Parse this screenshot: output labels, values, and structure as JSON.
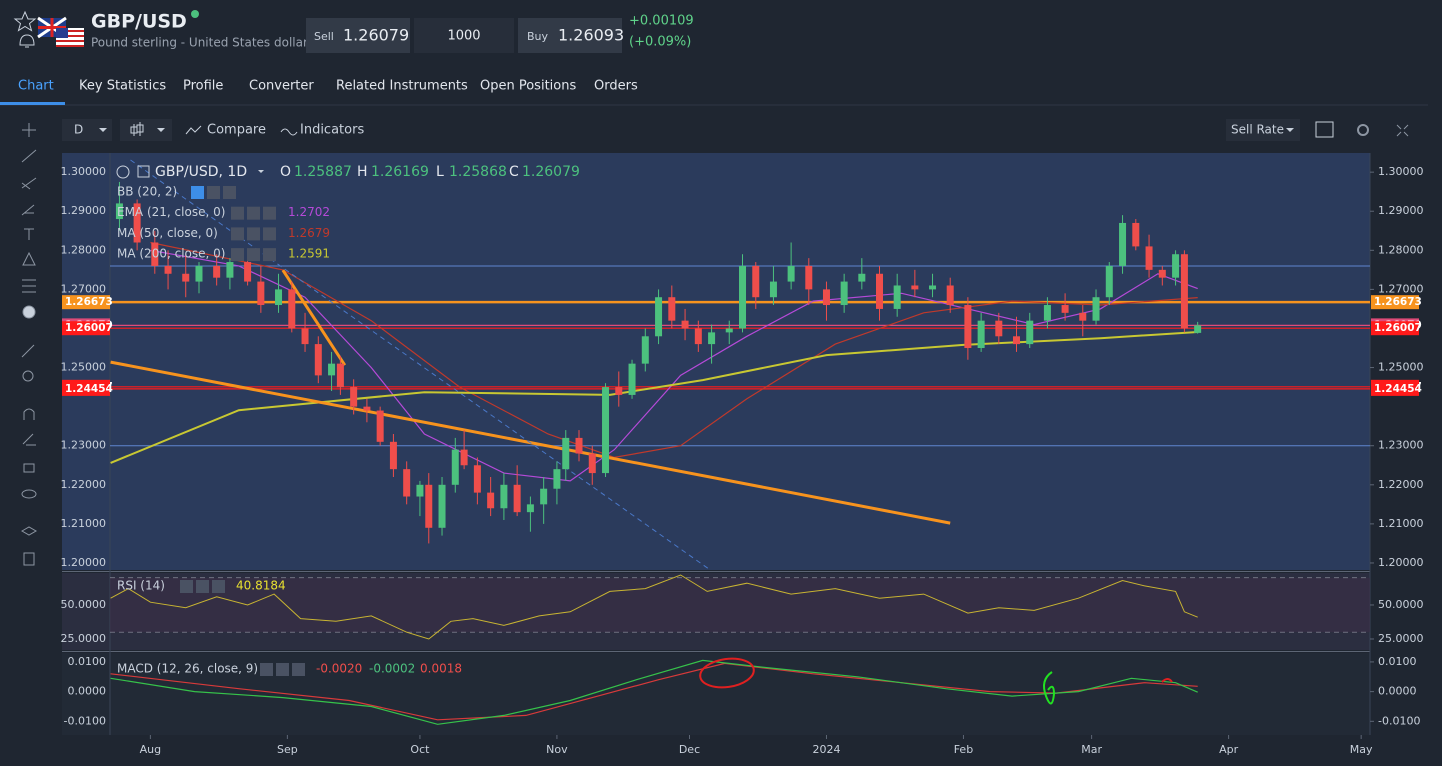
{
  "header": {
    "symbol": "GBP/USD",
    "name": "Pound sterling - United States dollar",
    "sell_label": "Sell",
    "sell": "1.26079",
    "quantity": "1000",
    "buy_label": "Buy",
    "buy": "1.26093",
    "change": "+0.00109",
    "change_pct": "(+0.09%)"
  },
  "tabs": [
    "Chart",
    "Key Statistics",
    "Profile",
    "Converter",
    "Related Instruments",
    "Open Positions",
    "Orders"
  ],
  "toolbar": {
    "interval": "D",
    "compare": "Compare",
    "indicators": "Indicators",
    "rate": "Sell Rate"
  },
  "chart_data": {
    "type": "candlestick",
    "title": "GBP/USD, 1D",
    "legend": {
      "o_label": "O",
      "o": "1.25887",
      "h_label": "H",
      "h": "1.26169",
      "l_label": "L",
      "l": "1.25868",
      "c_label": "C",
      "c": "1.26079"
    },
    "up_color": "#4cc17e",
    "down_color": "#ef4e4b",
    "xlim": [
      -20,
      276
    ],
    "xticks": [
      {
        "value": 0,
        "label": "Aug"
      },
      {
        "value": 31,
        "label": "Sep"
      },
      {
        "value": 61,
        "label": "Oct"
      },
      {
        "value": 92,
        "label": "Nov"
      },
      {
        "value": 122,
        "label": "Dec"
      },
      {
        "value": 153,
        "label": "2024"
      },
      {
        "value": 184,
        "label": "Feb"
      },
      {
        "value": 213,
        "label": "Mar"
      },
      {
        "value": 244,
        "label": "Apr"
      },
      {
        "value": 274,
        "label": "May"
      }
    ],
    "ylim": [
      1.1982,
      1.3049
    ],
    "yticks": [
      {
        "value": 1.3,
        "label": "1.30000"
      },
      {
        "value": 1.29,
        "label": "1.29000"
      },
      {
        "value": 1.28,
        "label": "1.28000"
      },
      {
        "value": 1.27,
        "label": "1.27000"
      },
      {
        "value": 1.25,
        "label": "1.25000"
      },
      {
        "value": 1.23,
        "label": "1.23000"
      },
      {
        "value": 1.22,
        "label": "1.22000"
      },
      {
        "value": 1.21,
        "label": "1.21000"
      },
      {
        "value": 1.2,
        "label": "1.20000"
      }
    ],
    "candles": [
      {
        "x": -7,
        "o": 1.288,
        "h": 1.2975,
        "l": 1.285,
        "c": 1.292
      },
      {
        "x": -3,
        "o": 1.292,
        "h": 1.293,
        "l": 1.28,
        "c": 1.282
      },
      {
        "x": 1,
        "o": 1.282,
        "h": 1.285,
        "l": 1.274,
        "c": 1.276
      },
      {
        "x": 4,
        "o": 1.276,
        "h": 1.28,
        "l": 1.27,
        "c": 1.274
      },
      {
        "x": 8,
        "o": 1.274,
        "h": 1.279,
        "l": 1.268,
        "c": 1.272
      },
      {
        "x": 11,
        "o": 1.272,
        "h": 1.277,
        "l": 1.269,
        "c": 1.276
      },
      {
        "x": 15,
        "o": 1.276,
        "h": 1.279,
        "l": 1.271,
        "c": 1.273
      },
      {
        "x": 18,
        "o": 1.273,
        "h": 1.278,
        "l": 1.27,
        "c": 1.277
      },
      {
        "x": 22,
        "o": 1.277,
        "h": 1.279,
        "l": 1.271,
        "c": 1.272
      },
      {
        "x": 25,
        "o": 1.272,
        "h": 1.276,
        "l": 1.264,
        "c": 1.266
      },
      {
        "x": 29,
        "o": 1.266,
        "h": 1.274,
        "l": 1.264,
        "c": 1.27
      },
      {
        "x": 32,
        "o": 1.27,
        "h": 1.272,
        "l": 1.259,
        "c": 1.26
      },
      {
        "x": 35,
        "o": 1.26,
        "h": 1.264,
        "l": 1.254,
        "c": 1.256
      },
      {
        "x": 38,
        "o": 1.256,
        "h": 1.258,
        "l": 1.246,
        "c": 1.248
      },
      {
        "x": 41,
        "o": 1.248,
        "h": 1.254,
        "l": 1.244,
        "c": 1.251
      },
      {
        "x": 43,
        "o": 1.251,
        "h": 1.253,
        "l": 1.243,
        "c": 1.245
      },
      {
        "x": 46,
        "o": 1.245,
        "h": 1.247,
        "l": 1.238,
        "c": 1.24
      },
      {
        "x": 49,
        "o": 1.24,
        "h": 1.242,
        "l": 1.236,
        "c": 1.239
      },
      {
        "x": 52,
        "o": 1.239,
        "h": 1.24,
        "l": 1.23,
        "c": 1.231
      },
      {
        "x": 55,
        "o": 1.231,
        "h": 1.233,
        "l": 1.222,
        "c": 1.224
      },
      {
        "x": 58,
        "o": 1.224,
        "h": 1.226,
        "l": 1.215,
        "c": 1.217
      },
      {
        "x": 61,
        "o": 1.217,
        "h": 1.221,
        "l": 1.212,
        "c": 1.22
      },
      {
        "x": 63,
        "o": 1.22,
        "h": 1.223,
        "l": 1.205,
        "c": 1.209
      },
      {
        "x": 66,
        "o": 1.209,
        "h": 1.222,
        "l": 1.207,
        "c": 1.22
      },
      {
        "x": 69,
        "o": 1.22,
        "h": 1.232,
        "l": 1.218,
        "c": 1.229
      },
      {
        "x": 71,
        "o": 1.229,
        "h": 1.234,
        "l": 1.224,
        "c": 1.225
      },
      {
        "x": 74,
        "o": 1.225,
        "h": 1.227,
        "l": 1.215,
        "c": 1.218
      },
      {
        "x": 77,
        "o": 1.218,
        "h": 1.222,
        "l": 1.212,
        "c": 1.214
      },
      {
        "x": 80,
        "o": 1.214,
        "h": 1.223,
        "l": 1.211,
        "c": 1.22
      },
      {
        "x": 83,
        "o": 1.22,
        "h": 1.225,
        "l": 1.212,
        "c": 1.213
      },
      {
        "x": 86,
        "o": 1.213,
        "h": 1.217,
        "l": 1.208,
        "c": 1.215
      },
      {
        "x": 89,
        "o": 1.215,
        "h": 1.222,
        "l": 1.21,
        "c": 1.219
      },
      {
        "x": 92,
        "o": 1.219,
        "h": 1.226,
        "l": 1.215,
        "c": 1.224
      },
      {
        "x": 94,
        "o": 1.224,
        "h": 1.234,
        "l": 1.221,
        "c": 1.232
      },
      {
        "x": 97,
        "o": 1.232,
        "h": 1.234,
        "l": 1.226,
        "c": 1.228
      },
      {
        "x": 100,
        "o": 1.228,
        "h": 1.23,
        "l": 1.22,
        "c": 1.223
      },
      {
        "x": 103,
        "o": 1.223,
        "h": 1.246,
        "l": 1.222,
        "c": 1.245
      },
      {
        "x": 106,
        "o": 1.245,
        "h": 1.249,
        "l": 1.24,
        "c": 1.243
      },
      {
        "x": 109,
        "o": 1.243,
        "h": 1.252,
        "l": 1.242,
        "c": 1.251
      },
      {
        "x": 112,
        "o": 1.251,
        "h": 1.26,
        "l": 1.249,
        "c": 1.258
      },
      {
        "x": 115,
        "o": 1.258,
        "h": 1.27,
        "l": 1.256,
        "c": 1.268
      },
      {
        "x": 118,
        "o": 1.268,
        "h": 1.271,
        "l": 1.26,
        "c": 1.262
      },
      {
        "x": 121,
        "o": 1.262,
        "h": 1.265,
        "l": 1.257,
        "c": 1.26
      },
      {
        "x": 124,
        "o": 1.26,
        "h": 1.262,
        "l": 1.254,
        "c": 1.256
      },
      {
        "x": 127,
        "o": 1.256,
        "h": 1.261,
        "l": 1.251,
        "c": 1.259
      },
      {
        "x": 131,
        "o": 1.259,
        "h": 1.262,
        "l": 1.256,
        "c": 1.26
      },
      {
        "x": 134,
        "o": 1.26,
        "h": 1.279,
        "l": 1.259,
        "c": 1.276
      },
      {
        "x": 137,
        "o": 1.276,
        "h": 1.277,
        "l": 1.265,
        "c": 1.268
      },
      {
        "x": 141,
        "o": 1.268,
        "h": 1.276,
        "l": 1.266,
        "c": 1.272
      },
      {
        "x": 145,
        "o": 1.272,
        "h": 1.282,
        "l": 1.27,
        "c": 1.276
      },
      {
        "x": 149,
        "o": 1.276,
        "h": 1.278,
        "l": 1.266,
        "c": 1.27
      },
      {
        "x": 153,
        "o": 1.27,
        "h": 1.272,
        "l": 1.262,
        "c": 1.266
      },
      {
        "x": 157,
        "o": 1.266,
        "h": 1.274,
        "l": 1.264,
        "c": 1.272
      },
      {
        "x": 161,
        "o": 1.272,
        "h": 1.278,
        "l": 1.27,
        "c": 1.274
      },
      {
        "x": 165,
        "o": 1.274,
        "h": 1.276,
        "l": 1.262,
        "c": 1.265
      },
      {
        "x": 169,
        "o": 1.265,
        "h": 1.274,
        "l": 1.263,
        "c": 1.271
      },
      {
        "x": 173,
        "o": 1.271,
        "h": 1.275,
        "l": 1.268,
        "c": 1.27
      },
      {
        "x": 177,
        "o": 1.27,
        "h": 1.274,
        "l": 1.268,
        "c": 1.271
      },
      {
        "x": 181,
        "o": 1.271,
        "h": 1.273,
        "l": 1.264,
        "c": 1.266
      },
      {
        "x": 185,
        "o": 1.266,
        "h": 1.268,
        "l": 1.252,
        "c": 1.255
      },
      {
        "x": 188,
        "o": 1.255,
        "h": 1.264,
        "l": 1.254,
        "c": 1.262
      },
      {
        "x": 192,
        "o": 1.262,
        "h": 1.264,
        "l": 1.256,
        "c": 1.258
      },
      {
        "x": 196,
        "o": 1.258,
        "h": 1.263,
        "l": 1.254,
        "c": 1.256
      },
      {
        "x": 199,
        "o": 1.256,
        "h": 1.264,
        "l": 1.255,
        "c": 1.262
      },
      {
        "x": 203,
        "o": 1.262,
        "h": 1.268,
        "l": 1.26,
        "c": 1.266
      },
      {
        "x": 207,
        "o": 1.266,
        "h": 1.269,
        "l": 1.262,
        "c": 1.264
      },
      {
        "x": 211,
        "o": 1.264,
        "h": 1.266,
        "l": 1.258,
        "c": 1.262
      },
      {
        "x": 214,
        "o": 1.262,
        "h": 1.27,
        "l": 1.261,
        "c": 1.268
      },
      {
        "x": 217,
        "o": 1.268,
        "h": 1.277,
        "l": 1.266,
        "c": 1.276
      },
      {
        "x": 220,
        "o": 1.276,
        "h": 1.289,
        "l": 1.274,
        "c": 1.287
      },
      {
        "x": 223,
        "o": 1.287,
        "h": 1.288,
        "l": 1.28,
        "c": 1.281
      },
      {
        "x": 226,
        "o": 1.281,
        "h": 1.284,
        "l": 1.273,
        "c": 1.275
      },
      {
        "x": 229,
        "o": 1.275,
        "h": 1.276,
        "l": 1.271,
        "c": 1.273
      },
      {
        "x": 232,
        "o": 1.273,
        "h": 1.28,
        "l": 1.271,
        "c": 1.279
      },
      {
        "x": 234,
        "o": 1.279,
        "h": 1.28,
        "l": 1.259,
        "c": 1.26
      },
      {
        "x": 237,
        "o": 1.25887,
        "h": 1.26169,
        "l": 1.25868,
        "c": 1.26079
      }
    ],
    "indicators": [
      {
        "name": "BB (20, 2)"
      },
      {
        "name": "EMA (21, close, 0)",
        "value": "1.2702",
        "color": "#b54ad8",
        "points": [
          [
            0,
            1.28
          ],
          [
            20,
            1.276
          ],
          [
            35,
            1.268
          ],
          [
            50,
            1.25
          ],
          [
            62,
            1.233
          ],
          [
            80,
            1.223
          ],
          [
            95,
            1.221
          ],
          [
            105,
            1.229
          ],
          [
            120,
            1.248
          ],
          [
            135,
            1.258
          ],
          [
            150,
            1.267
          ],
          [
            170,
            1.269
          ],
          [
            185,
            1.265
          ],
          [
            200,
            1.261
          ],
          [
            215,
            1.265
          ],
          [
            228,
            1.274
          ],
          [
            237,
            1.2702
          ]
        ]
      },
      {
        "name": "MA (50, close, 0)",
        "value": "1.2679",
        "color": "#c0392b",
        "points": [
          [
            0,
            1.282
          ],
          [
            30,
            1.275
          ],
          [
            50,
            1.262
          ],
          [
            70,
            1.245
          ],
          [
            90,
            1.233
          ],
          [
            105,
            1.227
          ],
          [
            120,
            1.23
          ],
          [
            135,
            1.242
          ],
          [
            155,
            1.256
          ],
          [
            175,
            1.264
          ],
          [
            195,
            1.267
          ],
          [
            215,
            1.266
          ],
          [
            237,
            1.2679
          ]
        ]
      },
      {
        "name": "MA (200, close, 0)",
        "value": "1.2591",
        "color": "#c8c832",
        "points": [
          [
            -9,
            1.2256
          ],
          [
            20,
            1.2391
          ],
          [
            62,
            1.2437
          ],
          [
            104,
            1.243
          ],
          [
            125,
            1.2468
          ],
          [
            153,
            1.2532
          ],
          [
            184,
            1.2558
          ],
          [
            215,
            1.2575
          ],
          [
            237,
            1.2591
          ]
        ]
      }
    ],
    "trendlines": [
      {
        "color": "#f7931e",
        "points": [
          [
            -9,
            1.2514
          ],
          [
            181,
            1.2102
          ]
        ]
      },
      {
        "color": "#f7931e",
        "points": [
          [
            30,
            1.2749
          ],
          [
            44,
            1.2506
          ]
        ]
      },
      {
        "color": "#4a78c8",
        "dashed": true,
        "points": [
          [
            -4.5,
            1.3031
          ],
          [
            126.7,
            1.1982
          ]
        ]
      }
    ],
    "hlines": [
      1.276,
      1.23
    ],
    "levels": [
      {
        "value": 1.26673,
        "color": "#f7931e"
      },
      {
        "value": 1.26079,
        "color": "#e04b78"
      },
      {
        "value": 1.26007,
        "color": "#ff1a1a"
      },
      {
        "value": 1.24507,
        "color": "#ff1a1a"
      },
      {
        "value": 1.24454,
        "color": "#ff1a1a"
      }
    ],
    "rsi": {
      "name": "RSI (14)",
      "value": "40.8184",
      "color": "#c8b432",
      "ylim": [
        16.9,
        73.5
      ],
      "yticks": [
        {
          "value": 50,
          "label": "50.0000"
        },
        {
          "value": 25,
          "label": "25.0000"
        }
      ],
      "bands": [
        70,
        30
      ],
      "points": [
        [
          -9,
          55
        ],
        [
          -5,
          62
        ],
        [
          0,
          52
        ],
        [
          8,
          48
        ],
        [
          15,
          56
        ],
        [
          22,
          50
        ],
        [
          28,
          58
        ],
        [
          34,
          40
        ],
        [
          42,
          38
        ],
        [
          50,
          42
        ],
        [
          58,
          30
        ],
        [
          63,
          25
        ],
        [
          68,
          38
        ],
        [
          73,
          40
        ],
        [
          80,
          35
        ],
        [
          88,
          42
        ],
        [
          95,
          45
        ],
        [
          104,
          60
        ],
        [
          112,
          62
        ],
        [
          120,
          72
        ],
        [
          126,
          60
        ],
        [
          135,
          66
        ],
        [
          145,
          58
        ],
        [
          155,
          62
        ],
        [
          165,
          55
        ],
        [
          175,
          58
        ],
        [
          185,
          44
        ],
        [
          192,
          48
        ],
        [
          200,
          46
        ],
        [
          210,
          55
        ],
        [
          220,
          68
        ],
        [
          225,
          64
        ],
        [
          232,
          60
        ],
        [
          234,
          45
        ],
        [
          237,
          41
        ]
      ]
    },
    "macd": {
      "name": "MACD (12, 26, close, 9)",
      "values": [
        "-0.0020",
        "-0.0002",
        "0.0018"
      ],
      "value_colors": [
        "#ef4e4b",
        "#4cc17e",
        "#ef4e4b"
      ],
      "ylim": [
        -0.0146,
        0.013
      ],
      "yticks": [
        {
          "value": 0.01,
          "label": "0.0100"
        },
        {
          "value": 0,
          "label": "0.0000"
        },
        {
          "value": -0.01,
          "label": "-0.0100"
        }
      ],
      "macd_color": "#36c24a",
      "signal_color": "#d83a3a",
      "macd_points": [
        [
          -9,
          0.0045
        ],
        [
          10,
          0
        ],
        [
          30,
          -0.002
        ],
        [
          50,
          -0.005
        ],
        [
          65,
          -0.011
        ],
        [
          80,
          -0.008
        ],
        [
          95,
          -0.003
        ],
        [
          110,
          0.004
        ],
        [
          125,
          0.0105
        ],
        [
          140,
          0.008
        ],
        [
          160,
          0.005
        ],
        [
          180,
          0.001
        ],
        [
          195,
          -0.0015
        ],
        [
          210,
          0
        ],
        [
          222,
          0.0045
        ],
        [
          232,
          0.003
        ],
        [
          237,
          -0.0002
        ]
      ],
      "signal_points": [
        [
          -9,
          0.006
        ],
        [
          20,
          0.001
        ],
        [
          45,
          -0.003
        ],
        [
          65,
          -0.0095
        ],
        [
          85,
          -0.008
        ],
        [
          100,
          -0.002
        ],
        [
          115,
          0.004
        ],
        [
          130,
          0.0095
        ],
        [
          150,
          0.006
        ],
        [
          170,
          0.003
        ],
        [
          190,
          0
        ],
        [
          205,
          -0.0005
        ],
        [
          225,
          0.003
        ],
        [
          237,
          0.0018
        ]
      ]
    }
  }
}
